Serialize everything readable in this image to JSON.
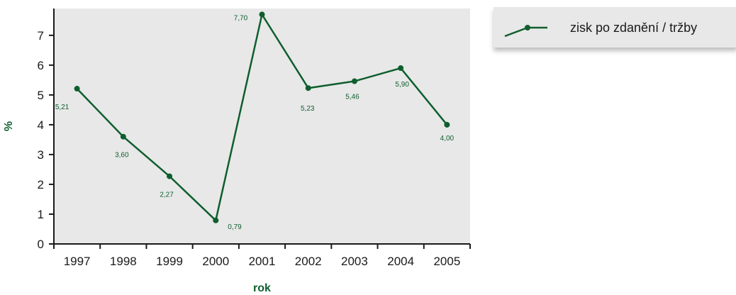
{
  "chart_data": {
    "type": "line",
    "categories": [
      "1997",
      "1998",
      "1999",
      "2000",
      "2001",
      "2002",
      "2003",
      "2004",
      "2005"
    ],
    "series": [
      {
        "name": "zisk po zdanění / tržby",
        "values": [
          5.21,
          3.6,
          2.27,
          0.79,
          7.7,
          5.23,
          5.46,
          5.9,
          4.0
        ],
        "labels": [
          "5,21",
          "3,60",
          "2,27",
          "0,79",
          "7,70",
          "5,23",
          "5,46",
          "5,90",
          "4,00"
        ]
      }
    ],
    "xlabel": "rok",
    "ylabel": "%",
    "ylim": [
      0,
      7.9
    ],
    "yticks": [
      "0",
      "1",
      "2",
      "3",
      "4",
      "5",
      "6",
      "7"
    ],
    "grid": false,
    "legend_position": "top-right",
    "colors": {
      "series": "#0f5e2e",
      "plot_bg": "#e8e8e8",
      "axis": "#1a1a1a",
      "label": "#0f5e2e"
    }
  },
  "legend": {
    "label": "zisk po zdanění / tržby"
  }
}
